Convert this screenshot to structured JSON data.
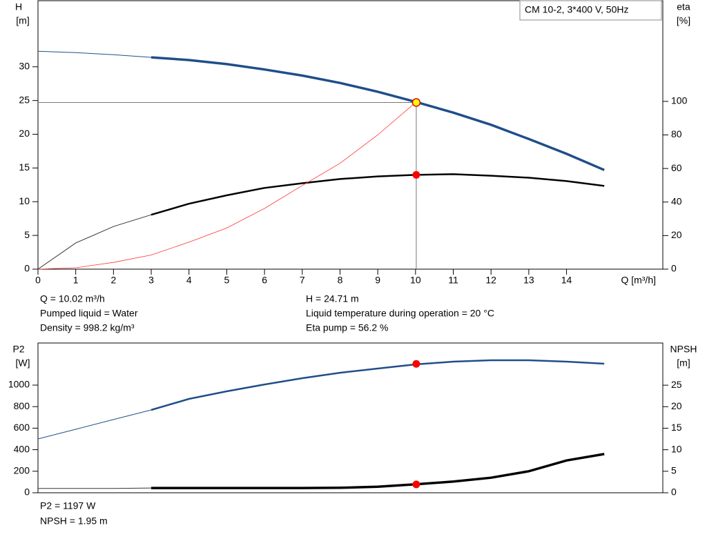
{
  "chart_data": [
    {
      "type": "line",
      "ylabel": "H",
      "yunit": "[m]",
      "y2label": "eta",
      "y2unit": "[%]",
      "xlabel": "Q [m³/h]",
      "legend_box": "CM 10-2, 3*400 V, 50Hz",
      "xlim": [
        0,
        16.55
      ],
      "xticks": [
        0,
        1,
        2,
        3,
        4,
        5,
        6,
        7,
        8,
        9,
        10,
        11,
        12,
        13,
        14
      ],
      "ylim": [
        0,
        39.8
      ],
      "yticks": [
        0,
        5,
        10,
        15,
        20,
        25,
        30
      ],
      "y2lim": [
        0,
        160
      ],
      "y2ticks": [
        0,
        20,
        40,
        60,
        80,
        100
      ],
      "series": [
        {
          "color": "#1f4e89",
          "width": 1,
          "x": [
            0,
            1,
            2,
            3
          ],
          "values": [
            32.3,
            32.1,
            31.8,
            31.4
          ]
        },
        {
          "color": "#1f4e89",
          "width": 3.5,
          "x": [
            3,
            4,
            5,
            6,
            7,
            8,
            9,
            10,
            11,
            12,
            13,
            14,
            15
          ],
          "values": [
            31.4,
            31.0,
            30.4,
            29.6,
            28.7,
            27.6,
            26.3,
            24.8,
            23.2,
            21.4,
            19.3,
            17.1,
            14.7
          ]
        },
        {
          "color": "#333333",
          "width": 1,
          "axis": "y2",
          "x": [
            0,
            1,
            2,
            3
          ],
          "values": [
            0,
            15.6,
            25.4,
            32.4
          ]
        },
        {
          "color": "#000000",
          "width": 2.5,
          "axis": "y2",
          "x": [
            3,
            4,
            5,
            6,
            7,
            8,
            9,
            10,
            11,
            12,
            13,
            14,
            15
          ],
          "values": [
            32.4,
            39,
            44,
            48.4,
            51.2,
            53.7,
            55.3,
            56.2,
            56.6,
            55.7,
            54.5,
            52.5,
            49.6
          ]
        },
        {
          "color": "#ff3030",
          "width": 0.8,
          "x": [
            0,
            1,
            2,
            3,
            4,
            5,
            6,
            7,
            8,
            9,
            10
          ],
          "values": [
            0,
            0.2,
            1.0,
            2.1,
            4.0,
            6.1,
            9.0,
            12.4,
            15.7,
            19.9,
            24.7
          ]
        }
      ],
      "points": [
        {
          "x": 10.02,
          "y": 24.71,
          "color": "#ffff00",
          "crosshair": true
        },
        {
          "x": 10.02,
          "y": 56.2,
          "color": "#ff0000",
          "axis": "y2"
        }
      ],
      "annotations": [
        "Q = 10.02 m³/h",
        "Pumped liquid = Water",
        "Density = 998.2 kg/m³",
        "H = 24.71 m",
        "Liquid temperature during operation = 20 °C",
        "Eta pump = 56.2 %"
      ]
    },
    {
      "type": "line",
      "ylabel": "P2",
      "yunit": "[W]",
      "y2label": "NPSH",
      "y2unit": "[m]",
      "xlim": [
        0,
        16.55
      ],
      "ylim": [
        0,
        1391
      ],
      "yticks": [
        0,
        200,
        400,
        600,
        800,
        1000
      ],
      "y2lim": [
        0,
        34.8
      ],
      "y2ticks": [
        0,
        5,
        10,
        15,
        20,
        25
      ],
      "series": [
        {
          "color": "#1f4e89",
          "width": 1,
          "x": [
            0,
            1,
            2,
            3
          ],
          "values": [
            500,
            590,
            680,
            769
          ]
        },
        {
          "color": "#1f4e89",
          "width": 2.5,
          "x": [
            3,
            4,
            5,
            6,
            7,
            8,
            9,
            10,
            11,
            12,
            13,
            14,
            15
          ],
          "values": [
            769,
            872,
            942,
            1006,
            1064,
            1115,
            1154,
            1192,
            1218,
            1231,
            1231,
            1218,
            1199
          ]
        },
        {
          "color": "#333333",
          "width": 1,
          "axis": "y2",
          "x": [
            0,
            1,
            2,
            3
          ],
          "values": [
            1.0,
            1.0,
            1.0,
            1.1
          ]
        },
        {
          "color": "#000000",
          "width": 3.5,
          "axis": "y2",
          "x": [
            3,
            4,
            5,
            6,
            7,
            8,
            9,
            10,
            11,
            12,
            13,
            14,
            15
          ],
          "values": [
            1.1,
            1.1,
            1.1,
            1.1,
            1.1,
            1.15,
            1.4,
            1.95,
            2.6,
            3.5,
            5.0,
            7.5,
            9.0
          ]
        }
      ],
      "points": [
        {
          "x": 10.02,
          "y": 1197,
          "color": "#ff0000"
        },
        {
          "x": 10.02,
          "y": 1.95,
          "color": "#ff0000",
          "axis": "y2"
        }
      ],
      "annotations": [
        "P2 = 1197 W",
        "NPSH = 1.95 m"
      ]
    }
  ]
}
